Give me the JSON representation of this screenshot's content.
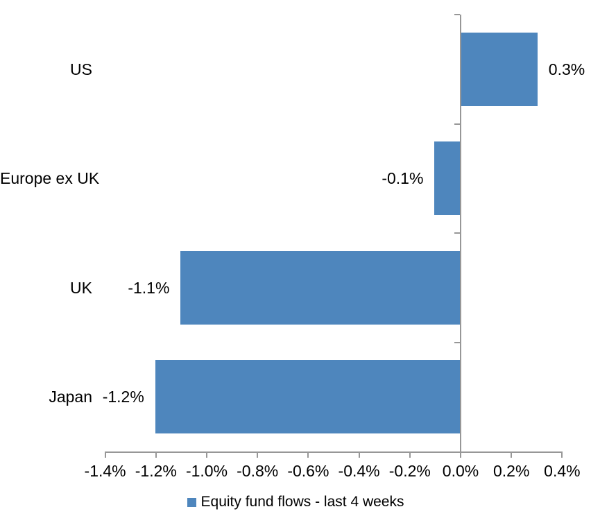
{
  "chart_data": {
    "type": "bar",
    "orientation": "horizontal",
    "categories": [
      "US",
      "Europe ex UK",
      "UK",
      "Japan"
    ],
    "series": [
      {
        "name": "Equity fund flows - last 4 weeks",
        "values": [
          0.3,
          -0.1,
          -1.1,
          -1.2
        ],
        "labels": [
          "0.3%",
          "-0.1%",
          "-1.1%",
          "-1.2%"
        ]
      }
    ],
    "title": "",
    "xlabel": "",
    "ylabel": "",
    "xlim": [
      -1.4,
      0.4
    ],
    "x_ticks": [
      -1.4,
      -1.2,
      -1.0,
      -0.8,
      -0.6,
      -0.4,
      -0.2,
      0.0,
      0.2,
      0.4
    ],
    "x_tick_labels": [
      "-1.4%",
      "-1.2%",
      "-1.0%",
      "-0.8%",
      "-0.6%",
      "-0.4%",
      "-0.2%",
      "0.0%",
      "0.2%",
      "0.4%"
    ],
    "grid": false,
    "legend_position": "bottom-center",
    "colors": {
      "bar": "#4E86BD",
      "axis": "#979797",
      "text": "#000000",
      "background": "#FFFFFF"
    }
  }
}
